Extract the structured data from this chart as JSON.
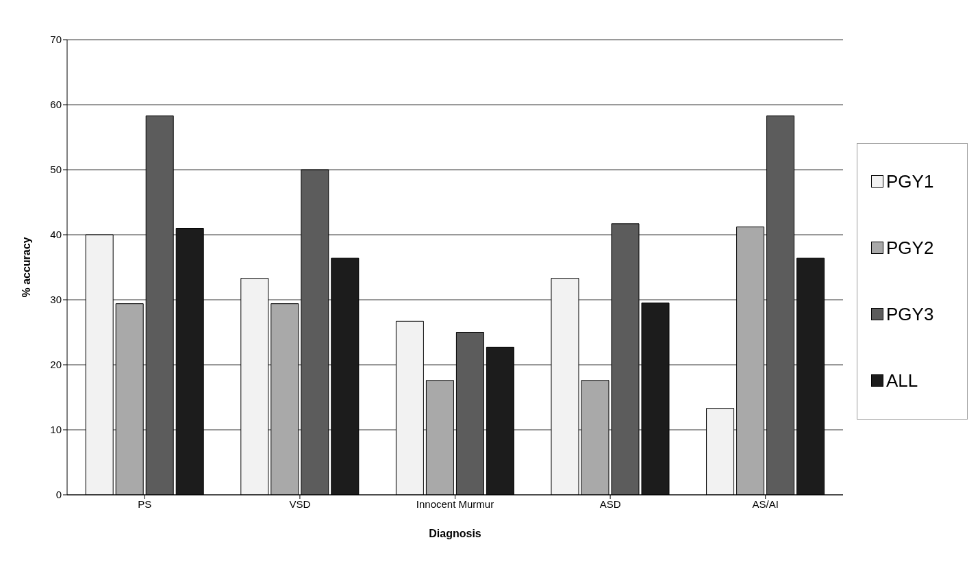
{
  "chart_data": {
    "type": "bar",
    "xlabel": "Diagnosis",
    "ylabel": "% accuracy",
    "categories": [
      "PS",
      "VSD",
      "Innocent Murmur",
      "ASD",
      "AS/AI"
    ],
    "series": [
      {
        "name": "PGY1",
        "color": "#f2f2f2",
        "values": [
          40,
          33.3,
          26.7,
          33.3,
          13.3
        ]
      },
      {
        "name": "PGY2",
        "color": "#a9a9a9",
        "values": [
          29.4,
          29.4,
          17.6,
          17.6,
          41.2
        ]
      },
      {
        "name": "PGY3",
        "color": "#5c5c5c",
        "values": [
          58.3,
          50,
          25,
          41.7,
          58.3
        ]
      },
      {
        "name": "ALL",
        "color": "#1c1c1c",
        "values": [
          41,
          36.4,
          22.7,
          29.5,
          36.4
        ]
      }
    ],
    "ylim": [
      0,
      70
    ],
    "yticks": [
      0,
      10,
      20,
      30,
      40,
      50,
      60,
      70
    ],
    "grid": "y",
    "legend": "right"
  }
}
